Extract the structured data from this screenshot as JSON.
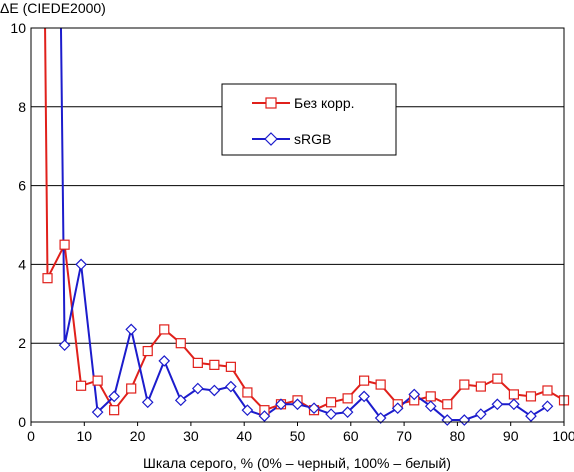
{
  "chart_data": {
    "type": "line",
    "ylabel": "ΔE (CIEDE2000)",
    "xlabel": "Шкала серого, % (0% – черный, 100% – белый)",
    "xlim": [
      0,
      100
    ],
    "ylim": [
      0,
      10
    ],
    "x_ticks": [
      "0",
      "10",
      "20",
      "30",
      "40",
      "50",
      "60",
      "70",
      "80",
      "90",
      "100"
    ],
    "y_ticks": [
      "0",
      "2",
      "4",
      "6",
      "8",
      "10"
    ],
    "grid": "horizontal",
    "legend_position": "upper-center",
    "series": [
      {
        "name": "Без корр.",
        "color": "#e0201b",
        "marker": "square",
        "points": [
          [
            2.5,
            12.0
          ],
          [
            3.1,
            3.65
          ],
          [
            6.3,
            4.5
          ],
          [
            9.4,
            0.92
          ],
          [
            12.5,
            1.05
          ],
          [
            15.6,
            0.3
          ],
          [
            18.8,
            0.85
          ],
          [
            21.9,
            1.8
          ],
          [
            25.0,
            2.35
          ],
          [
            28.1,
            2.0
          ],
          [
            31.3,
            1.5
          ],
          [
            34.4,
            1.45
          ],
          [
            37.5,
            1.4
          ],
          [
            40.6,
            0.75
          ],
          [
            43.8,
            0.3
          ],
          [
            46.9,
            0.45
          ],
          [
            50.0,
            0.55
          ],
          [
            53.1,
            0.3
          ],
          [
            56.3,
            0.5
          ],
          [
            59.4,
            0.6
          ],
          [
            62.5,
            1.05
          ],
          [
            65.6,
            0.95
          ],
          [
            68.8,
            0.45
          ],
          [
            71.9,
            0.55
          ],
          [
            75.0,
            0.65
          ],
          [
            78.1,
            0.45
          ],
          [
            81.3,
            0.95
          ],
          [
            84.4,
            0.9
          ],
          [
            87.5,
            1.1
          ],
          [
            90.6,
            0.7
          ],
          [
            93.8,
            0.65
          ],
          [
            96.9,
            0.8
          ],
          [
            100.0,
            0.55
          ]
        ]
      },
      {
        "name": "sRGB",
        "color": "#1c1ccc",
        "marker": "diamond",
        "points": [
          [
            5.5,
            11.5
          ],
          [
            6.3,
            1.95
          ],
          [
            9.4,
            4.0
          ],
          [
            12.5,
            0.25
          ],
          [
            15.6,
            0.65
          ],
          [
            18.8,
            2.35
          ],
          [
            21.9,
            0.5
          ],
          [
            25.0,
            1.55
          ],
          [
            28.1,
            0.55
          ],
          [
            31.3,
            0.85
          ],
          [
            34.4,
            0.8
          ],
          [
            37.5,
            0.9
          ],
          [
            40.6,
            0.3
          ],
          [
            43.8,
            0.15
          ],
          [
            46.9,
            0.45
          ],
          [
            50.0,
            0.45
          ],
          [
            53.1,
            0.35
          ],
          [
            56.3,
            0.2
          ],
          [
            59.4,
            0.25
          ],
          [
            62.5,
            0.65
          ],
          [
            65.6,
            0.1
          ],
          [
            68.8,
            0.35
          ],
          [
            71.9,
            0.7
          ],
          [
            75.0,
            0.4
          ],
          [
            78.1,
            0.05
          ],
          [
            81.3,
            0.05
          ],
          [
            84.4,
            0.2
          ],
          [
            87.5,
            0.45
          ],
          [
            90.6,
            0.45
          ],
          [
            93.8,
            0.15
          ],
          [
            96.9,
            0.4
          ]
        ]
      }
    ]
  }
}
